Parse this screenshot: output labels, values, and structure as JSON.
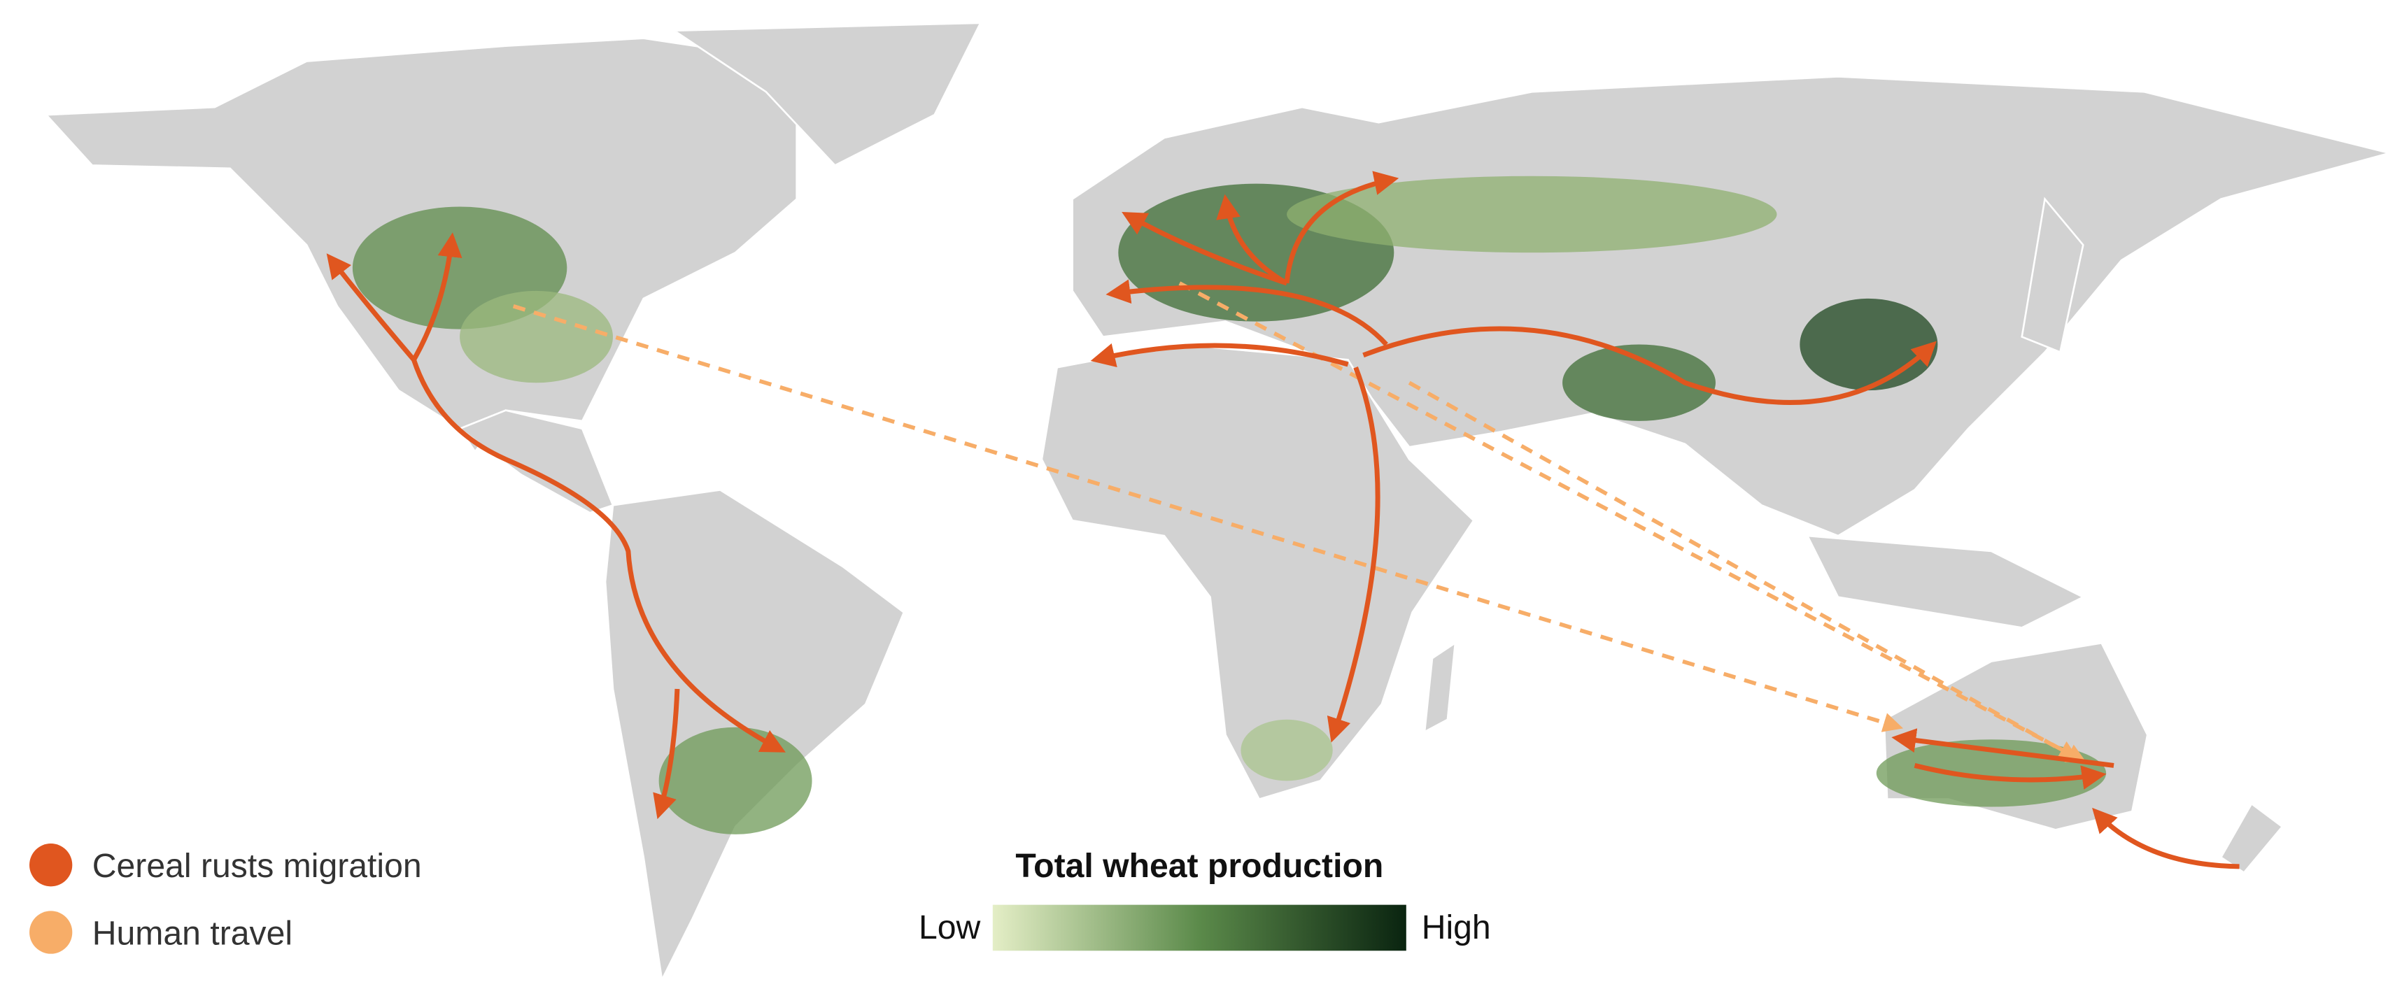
{
  "legend": {
    "items": [
      {
        "label": "Cereal rusts migration",
        "color": "#e0561f"
      },
      {
        "label": "Human travel",
        "color": "#f7ad68"
      }
    ]
  },
  "colorbar": {
    "title": "Total wheat production",
    "low": "Low",
    "high": "High",
    "colors": [
      "#e4eec6",
      "#0a2410"
    ]
  }
}
